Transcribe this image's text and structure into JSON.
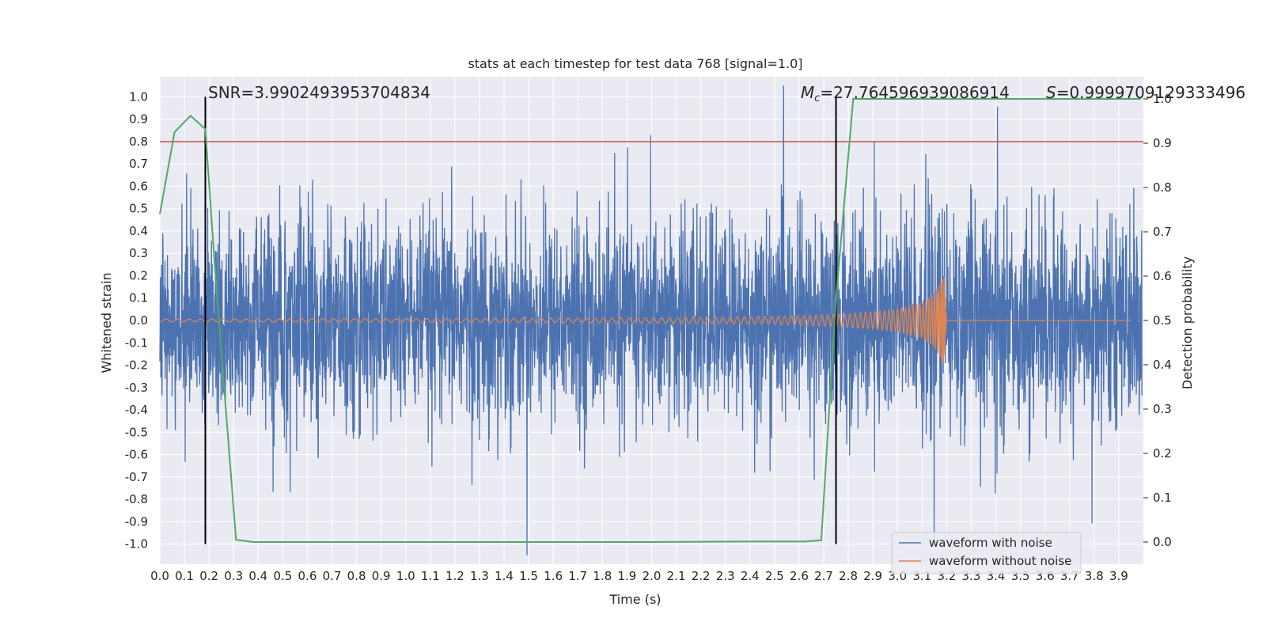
{
  "chart_data": {
    "type": "line",
    "title": "stats at each timestep for test data 768 [signal=1.0]",
    "xlabel": "Time (s)",
    "ylabel": "Whitened strain",
    "y2label": "Detection probability",
    "xlim": [
      0.0,
      4.0
    ],
    "ylim": [
      -1.09,
      1.09
    ],
    "y2lim": [
      -0.05,
      1.05
    ],
    "xticks": [
      "0.0",
      "0.1",
      "0.2",
      "0.3",
      "0.4",
      "0.5",
      "0.6",
      "0.7",
      "0.8",
      "0.9",
      "1.0",
      "1.1",
      "1.2",
      "1.3",
      "1.4",
      "1.5",
      "1.6",
      "1.7",
      "1.8",
      "1.9",
      "2.0",
      "2.1",
      "2.2",
      "2.3",
      "2.4",
      "2.5",
      "2.6",
      "2.7",
      "2.8",
      "2.9",
      "3.0",
      "3.1",
      "3.2",
      "3.3",
      "3.4",
      "3.5",
      "3.6",
      "3.7",
      "3.8",
      "3.9"
    ],
    "yticks": [
      "1.0",
      "0.9",
      "0.8",
      "0.7",
      "0.6",
      "0.5",
      "0.4",
      "0.3",
      "0.2",
      "0.1",
      "0.0",
      "-0.1",
      "-0.2",
      "-0.3",
      "-0.4",
      "-0.5",
      "-0.6",
      "-0.7",
      "-0.8",
      "-0.9",
      "-1.0"
    ],
    "y2ticks": [
      "1.0",
      "0.9",
      "0.8",
      "0.7",
      "0.6",
      "0.5",
      "0.4",
      "0.3",
      "0.2",
      "0.1",
      "0.0"
    ],
    "grid": true,
    "legend_position": "bottom-right",
    "series": [
      {
        "name": "waveform with noise",
        "axis": "left",
        "color": "#4c72b0",
        "note": "dense noisy strain, typically within ±0.4, spikes up to ±1.0",
        "x": [
          0.0,
          0.2,
          0.4,
          0.6,
          0.8,
          1.0,
          1.2,
          1.4,
          1.6,
          1.8,
          2.0,
          2.2,
          2.4,
          2.6,
          2.8,
          3.0,
          3.2,
          3.4,
          3.6,
          3.8,
          3.99
        ],
        "envelope": [
          0.4,
          0.42,
          0.45,
          0.45,
          0.45,
          0.43,
          0.44,
          0.45,
          0.44,
          0.44,
          0.43,
          0.44,
          0.44,
          0.45,
          0.47,
          0.5,
          0.5,
          0.44,
          0.43,
          0.44,
          0.42
        ]
      },
      {
        "name": "waveform without noise",
        "axis": "left",
        "color": "#dd8452",
        "note": "chirp: amplitude grows and frequency increases, merger near 3.2 s",
        "amplitude_x": [
          0.0,
          1.0,
          2.0,
          2.5,
          2.8,
          3.0,
          3.1,
          3.15,
          3.19,
          3.2
        ],
        "amplitude": [
          0.006,
          0.008,
          0.012,
          0.018,
          0.03,
          0.05,
          0.08,
          0.12,
          0.2,
          0.0
        ]
      },
      {
        "name": "detection probability",
        "axis": "right",
        "color": "#55a868",
        "x": [
          0.0,
          0.06,
          0.125,
          0.185,
          0.22,
          0.25,
          0.31,
          0.38,
          0.5,
          1.0,
          1.5,
          2.0,
          2.4,
          2.62,
          2.69,
          2.75,
          2.82,
          3.0,
          3.5,
          3.99
        ],
        "y": [
          0.74,
          0.925,
          0.962,
          0.932,
          0.65,
          0.43,
          0.005,
          0.0,
          0.0,
          0.0,
          0.0,
          0.0,
          0.001,
          0.001,
          0.004,
          0.55,
          1.0,
          1.0,
          1.0,
          1.0
        ]
      }
    ],
    "threshold_line": {
      "value": 0.8,
      "axis": "left",
      "color": "#c44e52"
    },
    "vertical_markers": [
      {
        "x": 0.185,
        "from": -1.0,
        "to": 1.0,
        "color": "#000000"
      },
      {
        "x": 2.75,
        "from": -1.0,
        "to": 1.0,
        "color": "#000000"
      }
    ],
    "annotations": {
      "snr": "SNR=3.9902493953704834",
      "mc_symbol": "M",
      "mc_sub": "c",
      "mc_value": "=27.764596939086914",
      "s_symbol": "S",
      "s_value": "=0.9999709129333496"
    },
    "colors": {
      "plot_bg": "#eaeaf2",
      "grid": "#ffffff",
      "noise": "#4c72b0",
      "clean": "#dd8452",
      "prob": "#55a868",
      "threshold": "#c44e52"
    }
  }
}
